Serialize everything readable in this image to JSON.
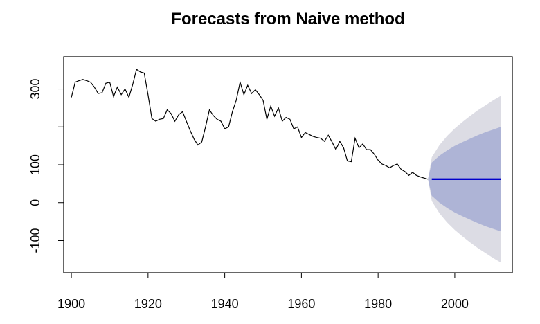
{
  "chart_data": {
    "type": "line",
    "title": "Forecasts from Naive method",
    "xlabel": "",
    "ylabel": "",
    "xlim": [
      1898,
      2015
    ],
    "ylim": [
      -185,
      385
    ],
    "x_ticks": [
      1900,
      1920,
      1940,
      1960,
      1980,
      2000
    ],
    "y_ticks": [
      -100,
      0,
      100,
      300
    ],
    "grid": false,
    "legend": "none",
    "colors": {
      "history": "#000000",
      "forecast": "#0000cc",
      "band80": "#aeb4d6",
      "band95": "#dcdce4"
    },
    "series": [
      {
        "role": "history",
        "x": [
          1900,
          1901,
          1902,
          1903,
          1904,
          1905,
          1906,
          1907,
          1908,
          1909,
          1910,
          1911,
          1912,
          1913,
          1914,
          1915,
          1916,
          1917,
          1918,
          1919,
          1920,
          1921,
          1922,
          1923,
          1924,
          1925,
          1926,
          1927,
          1928,
          1929,
          1930,
          1931,
          1932,
          1933,
          1934,
          1935,
          1936,
          1937,
          1938,
          1939,
          1940,
          1941,
          1942,
          1943,
          1944,
          1945,
          1946,
          1947,
          1948,
          1949,
          1950,
          1951,
          1952,
          1953,
          1954,
          1955,
          1956,
          1957,
          1958,
          1959,
          1960,
          1961,
          1962,
          1963,
          1964,
          1965,
          1966,
          1967,
          1968,
          1969,
          1970,
          1971,
          1972,
          1973,
          1974,
          1975,
          1976,
          1977,
          1978,
          1979,
          1980,
          1981,
          1982,
          1983,
          1984,
          1985,
          1986,
          1987,
          1988,
          1989,
          1990,
          1991,
          1992,
          1993
        ],
        "y": [
          278,
          318,
          322,
          325,
          322,
          318,
          305,
          288,
          290,
          315,
          318,
          280,
          305,
          285,
          300,
          278,
          312,
          352,
          345,
          342,
          285,
          222,
          215,
          220,
          222,
          245,
          235,
          215,
          232,
          240,
          215,
          190,
          168,
          152,
          160,
          200,
          245,
          230,
          220,
          215,
          195,
          200,
          240,
          270,
          318,
          285,
          310,
          288,
          298,
          285,
          270,
          220,
          255,
          228,
          250,
          215,
          225,
          220,
          195,
          200,
          172,
          185,
          180,
          175,
          172,
          170,
          162,
          178,
          160,
          140,
          162,
          145,
          110,
          108,
          170,
          145,
          155,
          140,
          140,
          128,
          112,
          102,
          98,
          92,
          98,
          102,
          88,
          82,
          72,
          80,
          72,
          68,
          65,
          62
        ]
      }
    ],
    "forecast": {
      "x": [
        1993,
        1994,
        2012
      ],
      "y": [
        62,
        62,
        62
      ]
    },
    "band80": {
      "x": [
        1993,
        1994,
        1996,
        1998,
        2000,
        2002,
        2004,
        2006,
        2008,
        2010,
        2012
      ],
      "upper": [
        62,
        106,
        124,
        138,
        150,
        160,
        169,
        178,
        186,
        193,
        200
      ],
      "lower": [
        62,
        18,
        0,
        -14,
        -26,
        -36,
        -45,
        -54,
        -62,
        -69,
        -76
      ]
    },
    "band95": {
      "x": [
        1993,
        1994,
        1996,
        1998,
        2000,
        2002,
        2004,
        2006,
        2008,
        2010,
        2012
      ],
      "upper": [
        62,
        120,
        152,
        176,
        196,
        213,
        229,
        244,
        257,
        270,
        282
      ],
      "lower": [
        62,
        4,
        -28,
        -52,
        -72,
        -89,
        -105,
        -120,
        -133,
        -146,
        -158
      ]
    }
  }
}
